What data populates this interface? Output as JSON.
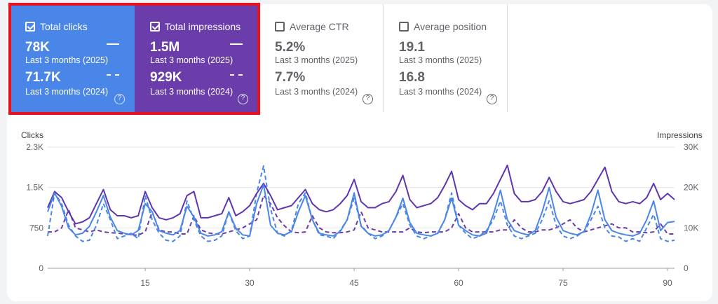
{
  "cards": {
    "clicks": {
      "label": "Total clicks",
      "checked": true,
      "value_current": "78K",
      "period_current": "Last 3 months (2025)",
      "value_previous": "71.7K",
      "period_previous": "Last 3 months (2024)",
      "color": "#4a86e8"
    },
    "impressions": {
      "label": "Total impressions",
      "checked": true,
      "value_current": "1.5M",
      "period_current": "Last 3 months (2025)",
      "value_previous": "929K",
      "period_previous": "Last 3 months (2024)",
      "color": "#6a3daa"
    },
    "ctr": {
      "label": "Average CTR",
      "checked": false,
      "value_current": "5.2%",
      "period_current": "Last 3 months (2025)",
      "value_previous": "7.7%",
      "period_previous": "Last 3 months (2024)"
    },
    "position": {
      "label": "Average position",
      "checked": false,
      "value_current": "19.1",
      "period_current": "Last 3 months (2025)",
      "value_previous": "16.8",
      "period_previous": "Last 3 months (2024)"
    },
    "help_glyph": "?"
  },
  "chart_data": {
    "type": "line",
    "y_left_label": "Clicks",
    "y_right_label": "Impressions",
    "y_left_ticks": [
      "0",
      "750",
      "1.5K",
      "2.3K"
    ],
    "y_left_range": [
      0,
      2250
    ],
    "y_right_ticks": [
      "0",
      "10K",
      "20K",
      "30K"
    ],
    "y_right_range": [
      0,
      30000
    ],
    "x_ticks": [
      15,
      30,
      45,
      60,
      75,
      90
    ],
    "x_range": [
      1,
      91
    ],
    "grid": true,
    "series": [
      {
        "axis": "left",
        "style": "solid",
        "color": "#4a86e8",
        "values": [
          1050,
          1400,
          1150,
          750,
          620,
          650,
          780,
          1050,
          1350,
          950,
          700,
          650,
          620,
          700,
          1200,
          1050,
          700,
          650,
          620,
          700,
          1150,
          950,
          650,
          600,
          620,
          680,
          1050,
          750,
          620,
          600,
          1200,
          1550,
          800,
          650,
          620,
          680,
          1050,
          1350,
          900,
          650,
          620,
          600,
          680,
          900,
          1400,
          780,
          650,
          600,
          620,
          700,
          950,
          1300,
          850,
          650,
          620,
          600,
          650,
          900,
          1300,
          800,
          700,
          620,
          600,
          650,
          1000,
          1450,
          900,
          700,
          650,
          620,
          700,
          1050,
          1500,
          950,
          700,
          650,
          620,
          680,
          1000,
          1450,
          900,
          700,
          650,
          620,
          600,
          650,
          900,
          1250,
          700,
          850,
          870
        ]
      },
      {
        "axis": "left",
        "style": "dashed",
        "color": "#4a86e8",
        "values": [
          600,
          1400,
          1200,
          800,
          600,
          500,
          520,
          800,
          1200,
          900,
          550,
          600,
          650,
          550,
          1350,
          900,
          650,
          520,
          500,
          600,
          1250,
          900,
          600,
          500,
          520,
          600,
          1050,
          700,
          550,
          600,
          1400,
          1900,
          1100,
          650,
          600,
          700,
          1200,
          1400,
          900,
          620,
          600,
          550,
          700,
          900,
          1300,
          800,
          650,
          550,
          600,
          700,
          950,
          1200,
          800,
          600,
          550,
          600,
          650,
          900,
          1400,
          800,
          650,
          550,
          600,
          700,
          900,
          1250,
          800,
          600,
          550,
          600,
          650,
          900,
          1250,
          800,
          600,
          550,
          600,
          680,
          900,
          1150,
          750,
          600,
          580,
          500,
          550,
          500,
          750,
          1000,
          550,
          500,
          520
        ]
      },
      {
        "axis": "right",
        "style": "solid",
        "color": "#5e35b1",
        "values": [
          15000,
          19000,
          17500,
          14000,
          11000,
          11500,
          12500,
          16000,
          19500,
          14500,
          13000,
          13000,
          12500,
          13000,
          19000,
          15000,
          12500,
          12000,
          12500,
          13500,
          18000,
          19000,
          12500,
          12500,
          13000,
          13500,
          17500,
          13000,
          14000,
          15500,
          18500,
          21000,
          18000,
          14500,
          15000,
          15500,
          17500,
          19500,
          16000,
          14500,
          14000,
          14500,
          16000,
          18000,
          22000,
          16500,
          15000,
          15000,
          16000,
          16500,
          19000,
          23000,
          17000,
          15000,
          15500,
          16000,
          17500,
          20500,
          24000,
          17000,
          15500,
          14500,
          16000,
          16000,
          18500,
          22000,
          25500,
          18500,
          16500,
          16500,
          17000,
          19000,
          22500,
          19000,
          16500,
          16000,
          16500,
          17000,
          19000,
          22000,
          25000,
          19000,
          16500,
          16000,
          16500,
          16000,
          17500,
          21000,
          17000,
          18500,
          17000
        ]
      },
      {
        "axis": "right",
        "style": "dashed",
        "color": "#6a3daa",
        "values": [
          9000,
          9000,
          10000,
          14500,
          10000,
          9500,
          9000,
          9500,
          9000,
          8800,
          8700,
          8500,
          8300,
          8200,
          9000,
          14000,
          9500,
          9000,
          9000,
          8500,
          8500,
          13000,
          9500,
          8800,
          8500,
          8500,
          9000,
          9500,
          10000,
          11000,
          12000,
          18000,
          16000,
          12500,
          10500,
          9000,
          8800,
          9000,
          13000,
          10000,
          9000,
          8800,
          8800,
          9000,
          9500,
          14000,
          10000,
          9500,
          9000,
          9000,
          9000,
          9000,
          10000,
          9000,
          8800,
          9000,
          9000,
          9000,
          10000,
          13500,
          10000,
          9000,
          9000,
          9000,
          9000,
          9500,
          9500,
          12000,
          10000,
          9000,
          9000,
          9500,
          9500,
          10000,
          11000,
          12000,
          10000,
          9000,
          9500,
          10000,
          10500,
          11000,
          10000,
          10000,
          9000,
          9000,
          8800,
          9000,
          11000,
          8500,
          8500
        ]
      }
    ]
  }
}
